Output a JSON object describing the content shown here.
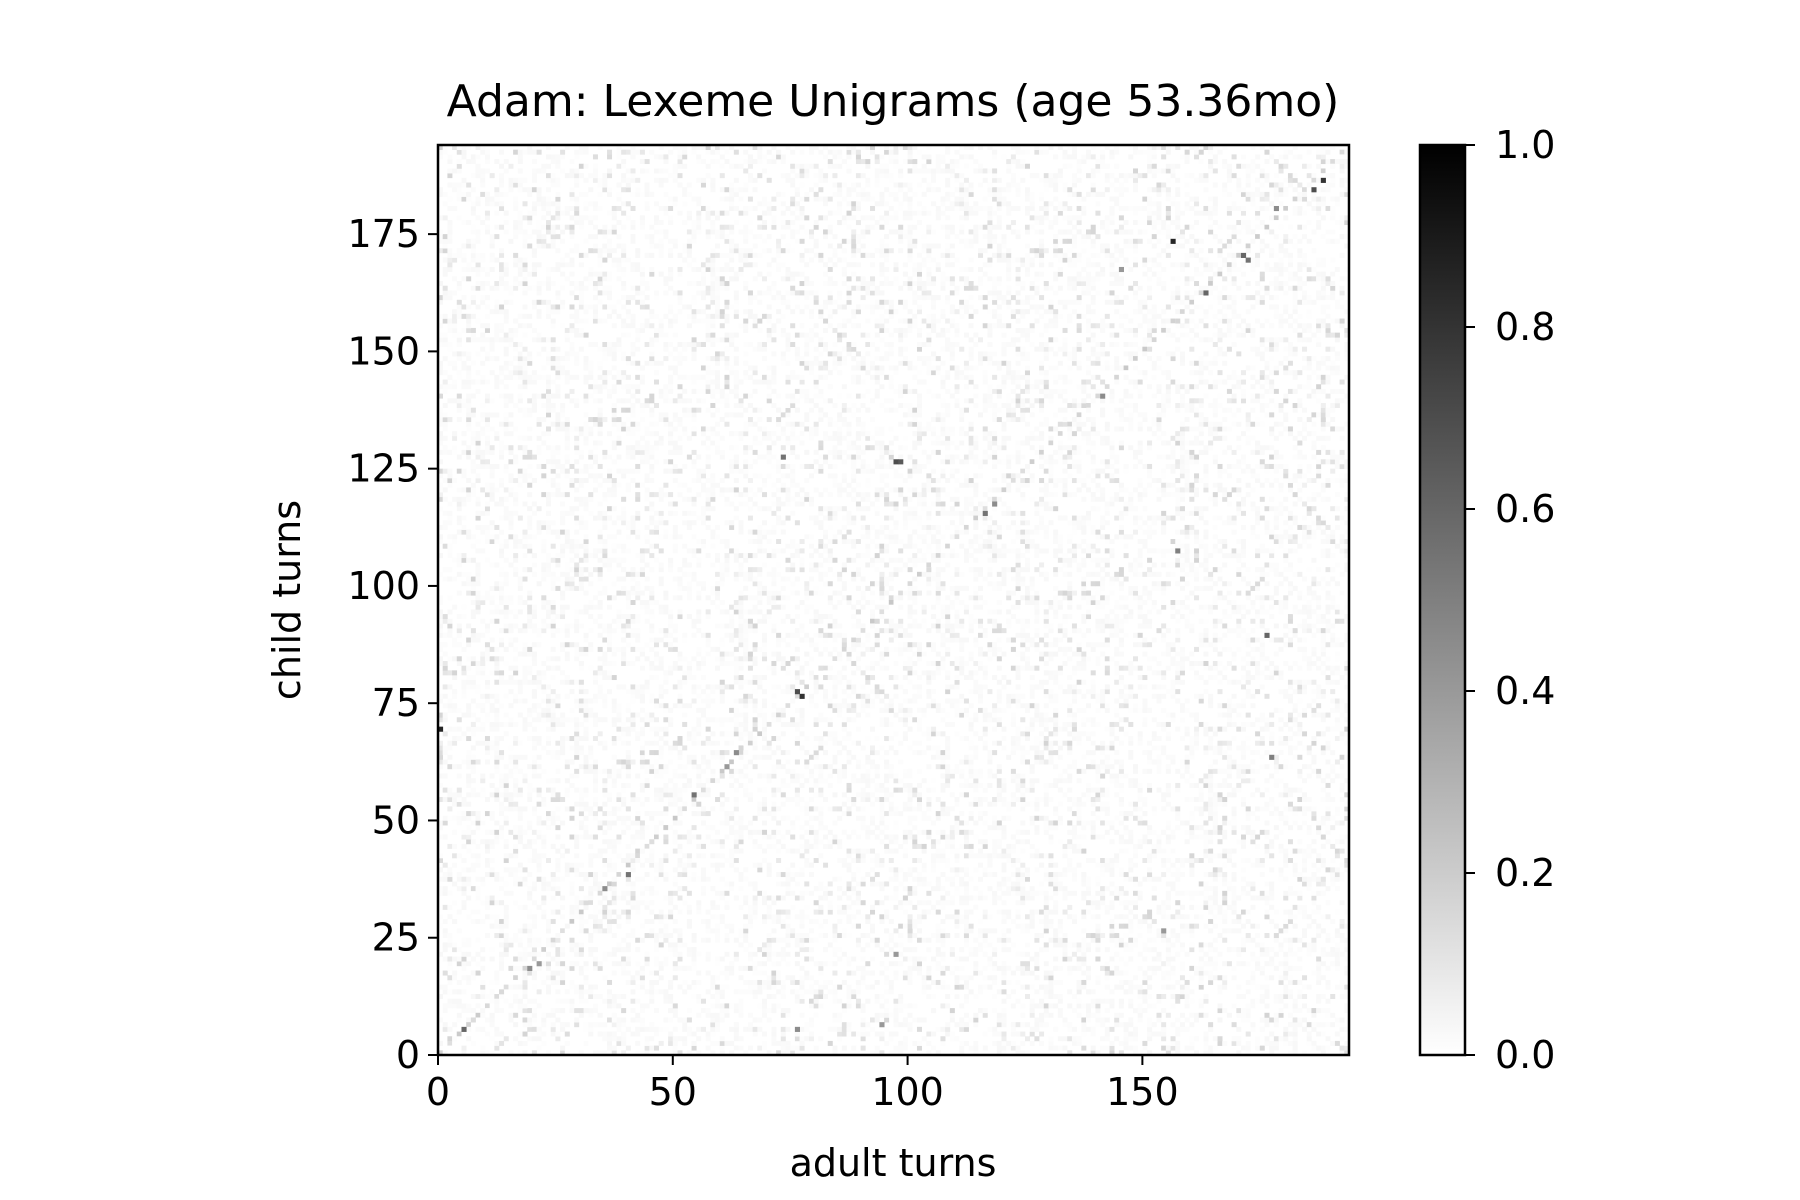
{
  "chart_data": {
    "type": "heatmap",
    "title": "Adam: Lexeme Unigrams (age 53.36mo)",
    "xlabel": "adult turns",
    "ylabel": "child turns",
    "xlim": [
      0,
      194
    ],
    "ylim": [
      0,
      194
    ],
    "x_ticks": [
      0,
      50,
      100,
      150
    ],
    "y_ticks": [
      0,
      25,
      50,
      75,
      100,
      125,
      150,
      175
    ],
    "grid": false,
    "colormap": "Greys (white = 0, black = 1)",
    "colorbar": {
      "range": [
        0.0,
        1.0
      ],
      "ticks": [
        0.0,
        0.2,
        0.4,
        0.6,
        0.8,
        1.0
      ],
      "placement": "right"
    },
    "n_rows": 194,
    "n_cols": 194,
    "background_level": 0.03,
    "notes_visible": "sparse matrix of similarity values mostly 0.0-0.15; darker cells roughly along the diagonal",
    "highlight_cells": [
      {
        "x": 188,
        "y": 186,
        "value": 0.8
      },
      {
        "x": 186,
        "y": 184,
        "value": 0.7
      },
      {
        "x": 178,
        "y": 180,
        "value": 0.45
      },
      {
        "x": 156,
        "y": 173,
        "value": 0.85
      },
      {
        "x": 171,
        "y": 170,
        "value": 0.6
      },
      {
        "x": 172,
        "y": 169,
        "value": 0.55
      },
      {
        "x": 163,
        "y": 162,
        "value": 0.6
      },
      {
        "x": 145,
        "y": 167,
        "value": 0.4
      },
      {
        "x": 141,
        "y": 140,
        "value": 0.45
      },
      {
        "x": 116,
        "y": 115,
        "value": 0.55
      },
      {
        "x": 118,
        "y": 117,
        "value": 0.45
      },
      {
        "x": 97,
        "y": 126,
        "value": 0.7
      },
      {
        "x": 98,
        "y": 126,
        "value": 0.65
      },
      {
        "x": 73,
        "y": 127,
        "value": 0.55
      },
      {
        "x": 157,
        "y": 107,
        "value": 0.5
      },
      {
        "x": 176,
        "y": 89,
        "value": 0.6
      },
      {
        "x": 77,
        "y": 76,
        "value": 0.8
      },
      {
        "x": 76,
        "y": 77,
        "value": 0.7
      },
      {
        "x": 0,
        "y": 69,
        "value": 0.85
      },
      {
        "x": 63,
        "y": 64,
        "value": 0.45
      },
      {
        "x": 61,
        "y": 61,
        "value": 0.4
      },
      {
        "x": 54,
        "y": 55,
        "value": 0.55
      },
      {
        "x": 177,
        "y": 63,
        "value": 0.5
      },
      {
        "x": 40,
        "y": 38,
        "value": 0.55
      },
      {
        "x": 35,
        "y": 35,
        "value": 0.45
      },
      {
        "x": 21,
        "y": 19,
        "value": 0.4
      },
      {
        "x": 19,
        "y": 18,
        "value": 0.45
      },
      {
        "x": 5,
        "y": 5,
        "value": 0.6
      },
      {
        "x": 76,
        "y": 5,
        "value": 0.45
      },
      {
        "x": 94,
        "y": 6,
        "value": 0.4
      },
      {
        "x": 154,
        "y": 26,
        "value": 0.4
      },
      {
        "x": 97,
        "y": 21,
        "value": 0.4
      }
    ]
  }
}
